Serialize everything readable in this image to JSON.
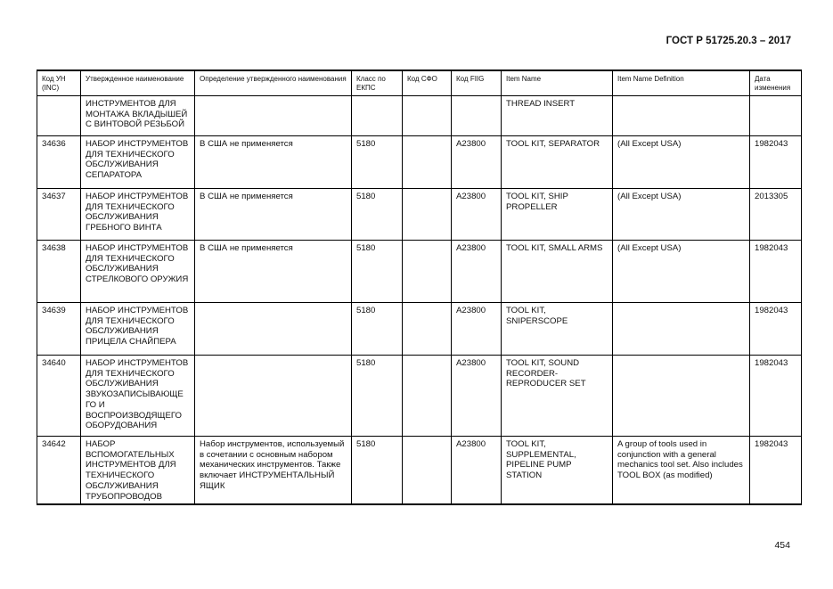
{
  "doc_id": "ГОСТ Р 51725.20.3 – 2017",
  "page_number": "454",
  "table": {
    "headers": [
      "Код УН (INC)",
      "Утвержденное наименование",
      "Определение утвержденного наименования",
      "Класс по ЕКПС",
      "Код СФО",
      "Код FIIG",
      "Item Name",
      "Item Name Definition",
      "Дата изменения"
    ],
    "rows": [
      [
        "",
        "ИНСТРУМЕНТОВ ДЛЯ МОНТАЖА ВКЛАДЫШЕЙ С ВИНТОВОЙ РЕЗЬБОЙ",
        "",
        "",
        "",
        "",
        "THREAD INSERT",
        "",
        ""
      ],
      [
        "34636",
        "НАБОР ИНСТРУМЕНТОВ ДЛЯ ТЕХНИЧЕСКОГО ОБСЛУЖИВАНИЯ СЕПАРАТОРА",
        "В США не применяется",
        "5180",
        "",
        "A23800",
        "TOOL KIT, SEPARATOR",
        "(All Except USA)",
        "1982043"
      ],
      [
        "34637",
        "НАБОР ИНСТРУМЕНТОВ ДЛЯ ТЕХНИЧЕСКОГО ОБСЛУЖИВАНИЯ ГРЕБНОГО ВИНТА",
        "В США не применяется",
        "5180",
        "",
        "A23800",
        "TOOL KIT, SHIP PROPELLER",
        "(All Except USA)",
        "2013305"
      ],
      [
        "34638",
        "НАБОР ИНСТРУМЕНТОВ ДЛЯ ТЕХНИЧЕСКОГО ОБСЛУЖИВАНИЯ СТРЕЛКОВОГО ОРУЖИЯ",
        "В США не применяется",
        "5180",
        "",
        "A23800",
        "TOOL KIT, SMALL ARMS",
        "(All Except USA)",
        "1982043"
      ],
      [
        "34639",
        "НАБОР ИНСТРУМЕНТОВ ДЛЯ ТЕХНИЧЕСКОГО ОБСЛУЖИВАНИЯ ПРИЦЕЛА СНАЙПЕРА",
        "",
        "5180",
        "",
        "A23800",
        "TOOL KIT, SNIPERSCOPE",
        "",
        "1982043"
      ],
      [
        "34640",
        "НАБОР ИНСТРУМЕНТОВ ДЛЯ ТЕХНИЧЕСКОГО ОБСЛУЖИВАНИЯ ЗВУКОЗАПИСЫВАЮЩЕ ГО И ВОСПРОИЗВОДЯЩЕГО ОБОРУДОВАНИЯ",
        "",
        "5180",
        "",
        "A23800",
        "TOOL KIT, SOUND RECORDER-REPRODUCER SET",
        "",
        "1982043"
      ],
      [
        "34642",
        "НАБОР ВСПОМОГАТЕЛЬНЫХ ИНСТРУМЕНТОВ ДЛЯ ТЕХНИЧЕСКОГО ОБСЛУЖИВАНИЯ ТРУБОПРОВОДОВ",
        "Набор инструментов, используемый в сочетании с основным набором механических инструментов. Также включает ИНСТРУМЕНТАЛЬНЫЙ ЯЩИК",
        "5180",
        "",
        "A23800",
        "TOOL KIT, SUPPLEMENTAL, PIPELINE PUMP STATION",
        "A group of tools used in conjunction with a general mechanics tool set. Also includes TOOL BOX (as modified)",
        "1982043"
      ]
    ]
  }
}
